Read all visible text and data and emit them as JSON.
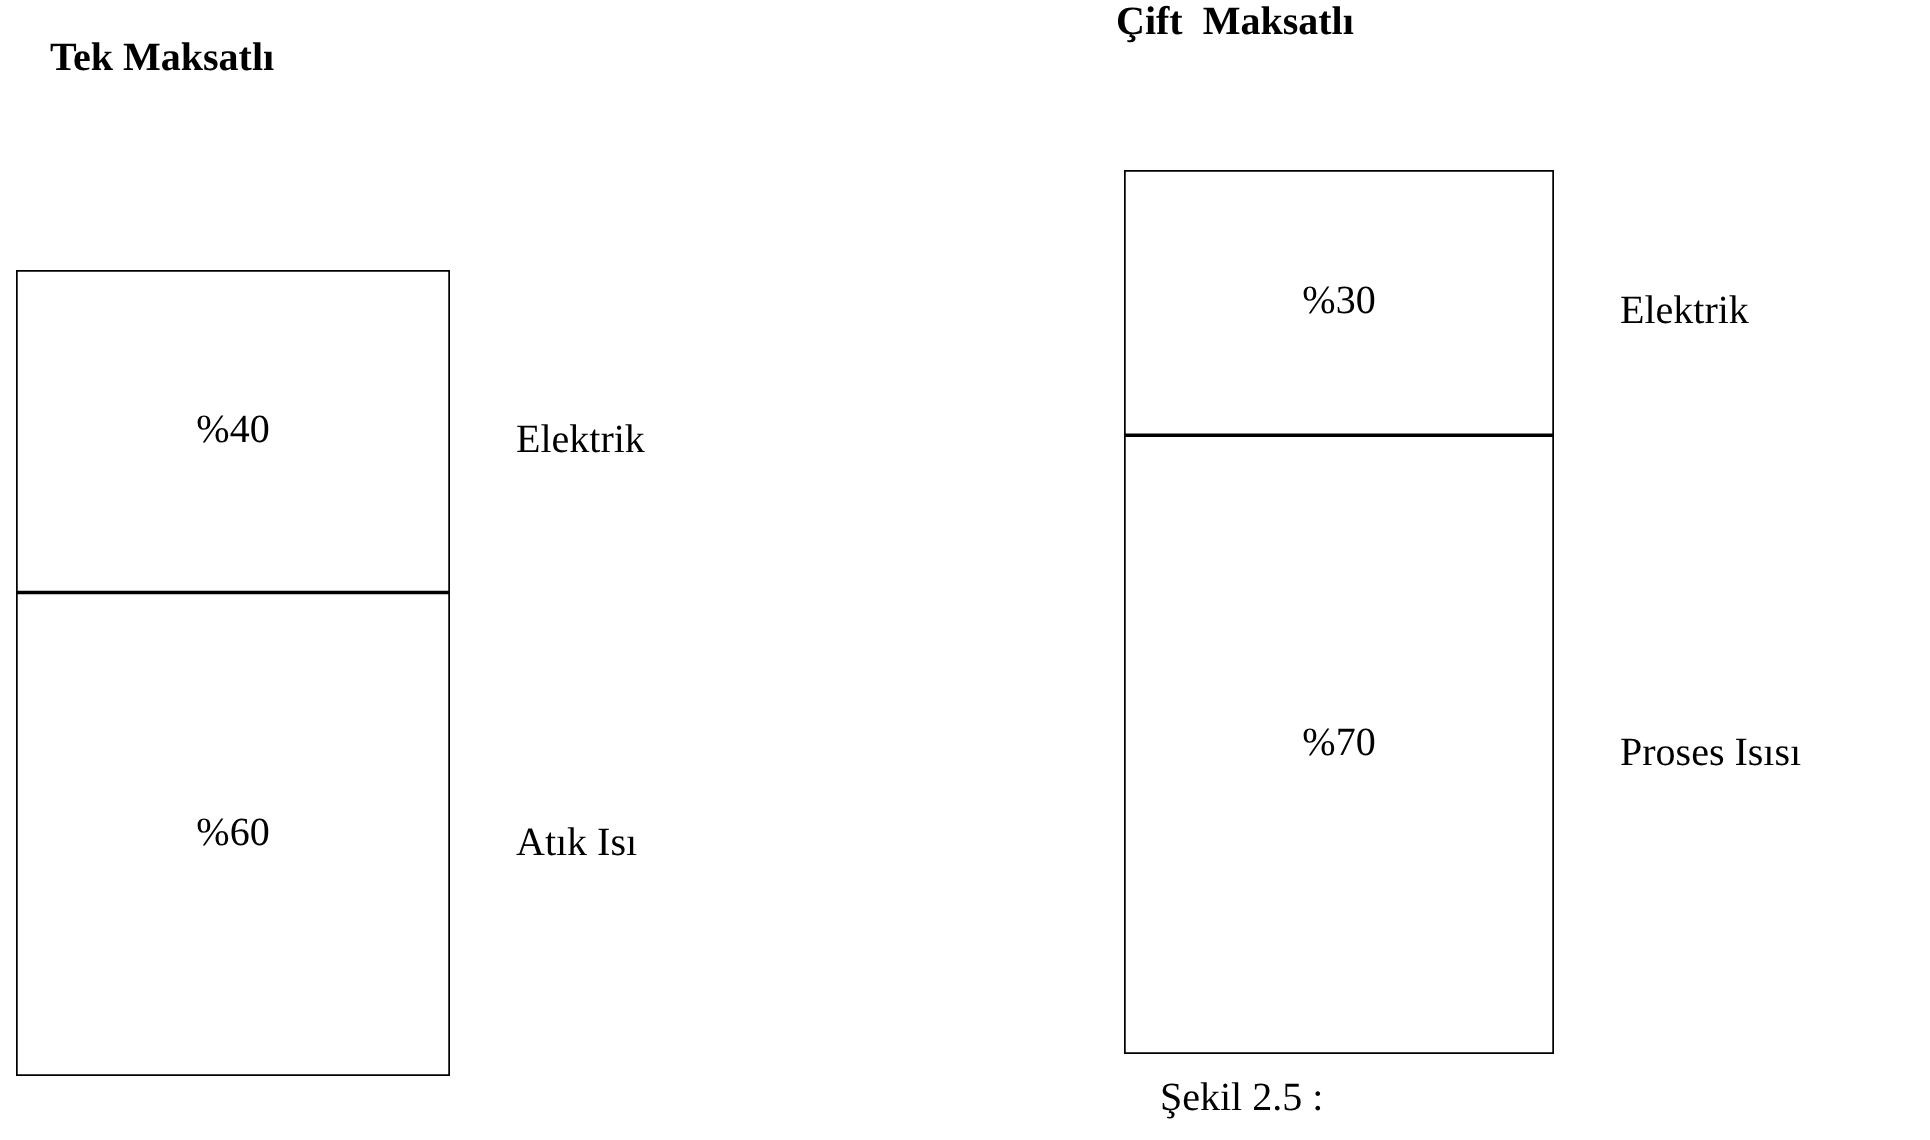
{
  "chart_data": [
    {
      "type": "bar",
      "title": "Tek Maksatlı",
      "categories": [
        null
      ],
      "stacked": true,
      "ylim": [
        0,
        100
      ],
      "tick_labels": false,
      "grid": false,
      "legend": false,
      "series": [
        {
          "name": "Atık Isı",
          "color": "#ffffff",
          "values": [
            60
          ],
          "value_labels": [
            "%60"
          ]
        },
        {
          "name": "Elektrik",
          "color": "#ffffff",
          "values": [
            40
          ],
          "value_labels": [
            "%40"
          ]
        }
      ]
    },
    {
      "type": "bar",
      "title": "Çift  Maksatlı",
      "categories": [
        null
      ],
      "stacked": true,
      "ylim": [
        0,
        100
      ],
      "tick_labels": false,
      "grid": false,
      "legend": false,
      "annotations": [
        "Şekil 2.5 :"
      ],
      "series": [
        {
          "name": "Proses Isısı",
          "color": "#ffffff",
          "values": [
            70
          ],
          "value_labels": [
            "%70"
          ]
        },
        {
          "name": "Elektrik",
          "color": "#ffffff",
          "values": [
            30
          ],
          "value_labels": [
            "%30"
          ]
        }
      ]
    }
  ]
}
